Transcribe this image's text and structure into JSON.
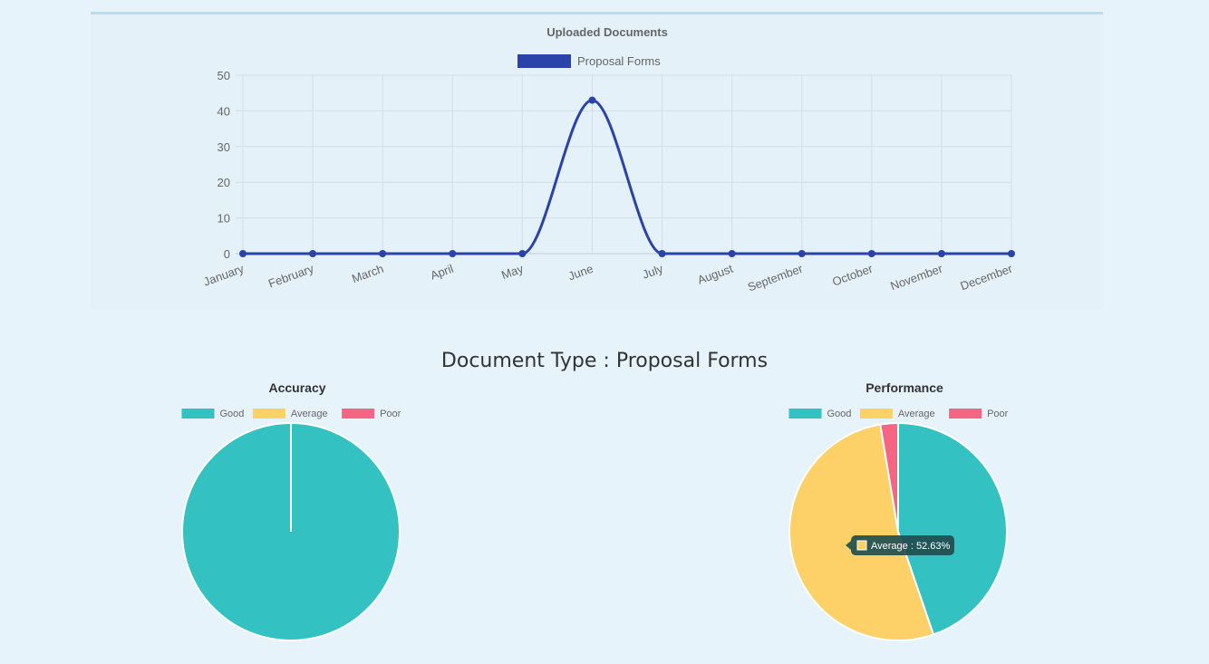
{
  "page": {
    "section_title": "Document Type : Proposal Forms"
  },
  "colors": {
    "line_series": "#2b42a8",
    "good": "#33c1c1",
    "average": "#fdd068",
    "poor": "#f56584",
    "tooltip_bg": "#1f4d4f"
  },
  "chart_data": [
    {
      "type": "line",
      "title": "Uploaded Documents",
      "categories": [
        "January",
        "February",
        "March",
        "April",
        "May",
        "June",
        "July",
        "August",
        "September",
        "October",
        "November",
        "December"
      ],
      "series": [
        {
          "name": "Proposal Forms",
          "values": [
            0,
            0,
            0,
            0,
            0,
            43,
            0,
            0,
            0,
            0,
            0,
            0
          ]
        }
      ],
      "ylim": [
        0,
        50
      ],
      "yticks": [
        0,
        10,
        20,
        30,
        40,
        50
      ],
      "grid": true,
      "legend": "top"
    },
    {
      "type": "pie",
      "title": "Accuracy",
      "labels": [
        "Good",
        "Average",
        "Poor"
      ],
      "values": [
        100,
        0,
        0
      ],
      "legend": "top"
    },
    {
      "type": "pie",
      "title": "Performance",
      "labels": [
        "Good",
        "Average",
        "Poor"
      ],
      "values": [
        44.74,
        52.63,
        2.63
      ],
      "legend": "top",
      "tooltip": {
        "label": "Average",
        "text": "Average : 52.63%"
      }
    }
  ]
}
